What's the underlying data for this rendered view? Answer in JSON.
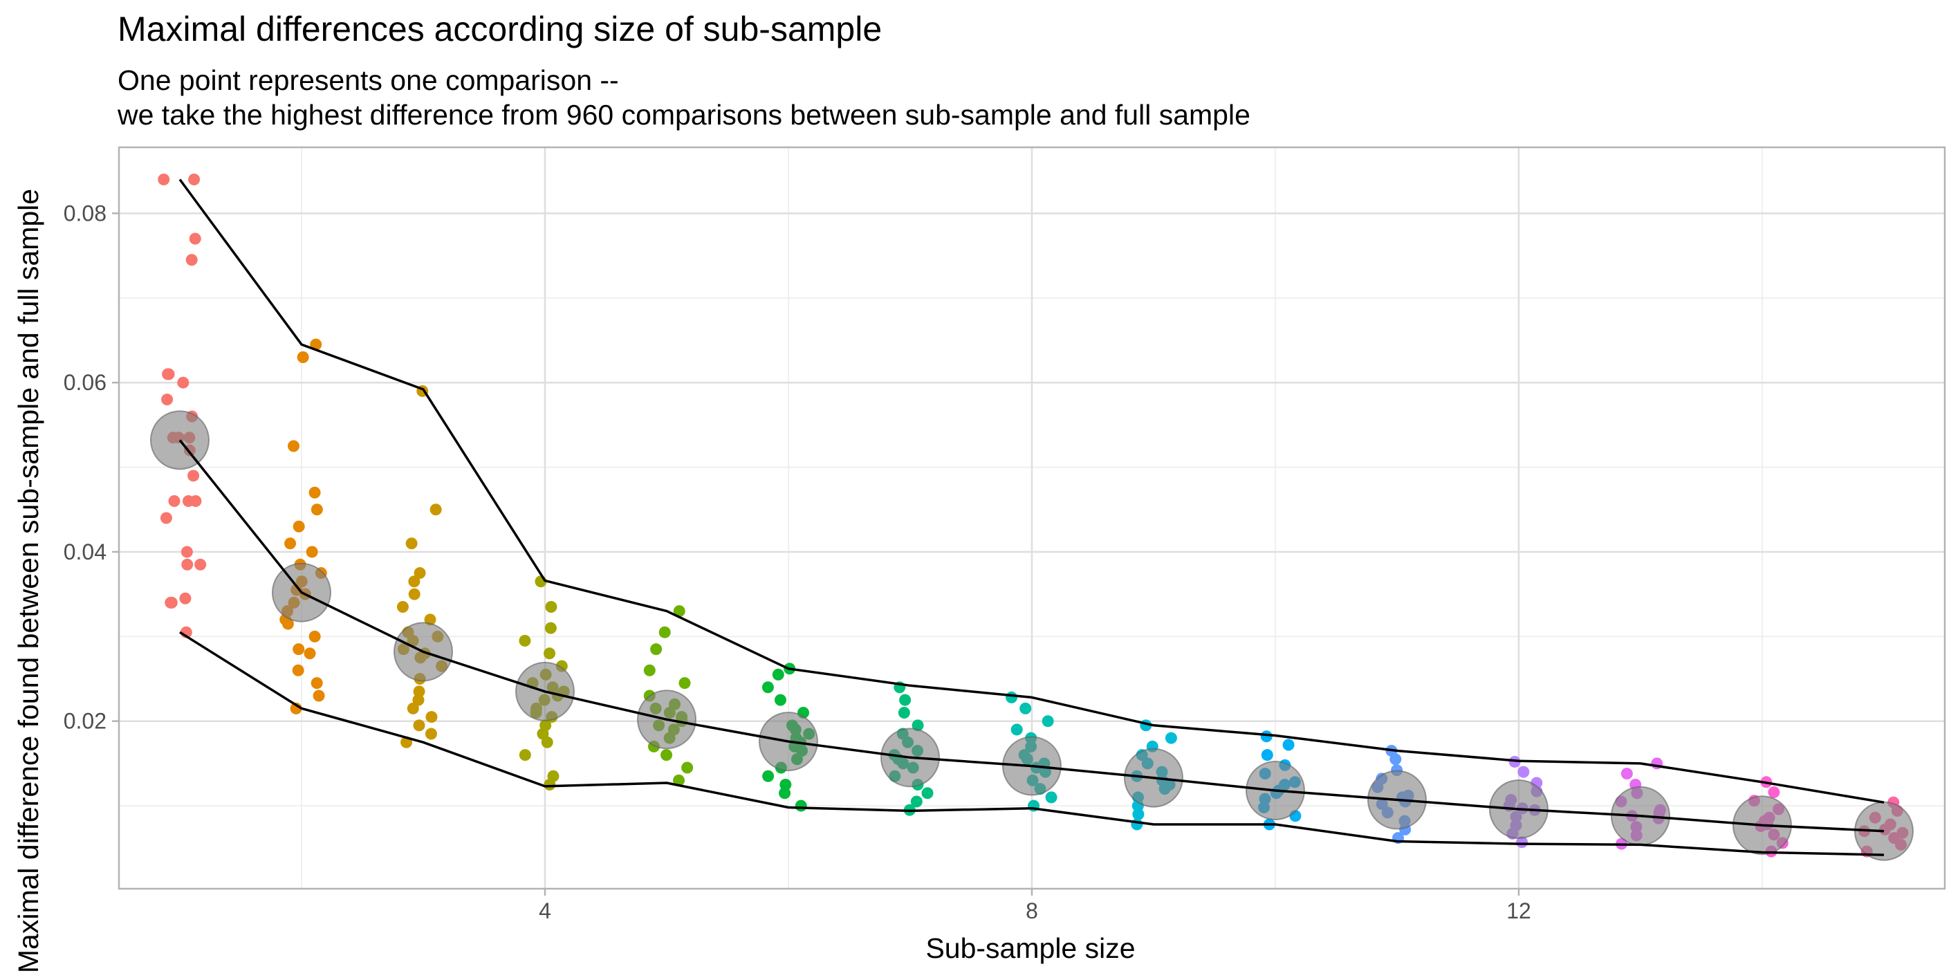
{
  "chart_data": {
    "type": "scatter",
    "title": "Maximal differences according size of sub-sample",
    "subtitle_lines": [
      "One point represents one comparison --",
      "we take the highest difference from 960 comparisons between sub-sample and full sample"
    ],
    "xlabel": "Sub-sample size",
    "ylabel": "Maximal difference found between sub-sample and full sample",
    "xlim": [
      0.5,
      15.5
    ],
    "ylim": [
      0.0002,
      0.0878
    ],
    "x_ticks": [
      4,
      8,
      12
    ],
    "x_tick_labels": [
      "4",
      "8",
      "12"
    ],
    "y_ticks": [
      0.02,
      0.04,
      0.06,
      0.08
    ],
    "y_tick_labels": [
      "0.02",
      "0.04",
      "0.06",
      "0.08"
    ],
    "grid": true,
    "legend": "none",
    "colors": [
      "#F8766D",
      "#E38900",
      "#C49A00",
      "#99A800",
      "#53B400",
      "#00BC56",
      "#00C094",
      "#00BFC4",
      "#00B6EB",
      "#06A4FF",
      "#A58AFF",
      "#DF70F8",
      "#FB61D7",
      "#FF66A8"
    ],
    "point_colors_by_size": [
      "#F8766D",
      "#E58700",
      "#C99800",
      "#A3A500",
      "#6BB100",
      "#00BA38",
      "#00BF7D",
      "#00C0AF",
      "#00BCD8",
      "#00B0F6",
      "#619CFF",
      "#B983FF",
      "#E76BF3",
      "#FD61D1",
      "#FF67A4"
    ],
    "mean_marker_color": "#808080",
    "line_color": "#000000",
    "series": [
      {
        "x": [
          1,
          2,
          3,
          4,
          5,
          6,
          7,
          8,
          9,
          10,
          11,
          12,
          13,
          14,
          15
        ],
        "points": [
          [
            0.0305,
            0.034,
            0.0345,
            0.0385,
            0.0385,
            0.04,
            0.044,
            0.046,
            0.046,
            0.049,
            0.052,
            0.0535,
            0.056,
            0.058,
            0.06,
            0.061,
            0.061,
            0.0745,
            0.077,
            0.084,
            0.084,
            0.0535,
            0.0535,
            0.046,
            0.034
          ],
          [
            0.0215,
            0.023,
            0.0245,
            0.026,
            0.0285,
            0.03,
            0.0315,
            0.033,
            0.034,
            0.0355,
            0.0365,
            0.0375,
            0.0385,
            0.04,
            0.041,
            0.043,
            0.045,
            0.047,
            0.0525,
            0.063,
            0.0645,
            0.028,
            0.032,
            0.035
          ],
          [
            0.0175,
            0.0185,
            0.0195,
            0.0205,
            0.0215,
            0.0225,
            0.0235,
            0.025,
            0.0265,
            0.0275,
            0.0285,
            0.0295,
            0.0305,
            0.032,
            0.0335,
            0.035,
            0.0365,
            0.0375,
            0.041,
            0.045,
            0.059,
            0.028,
            0.03
          ],
          [
            0.0125,
            0.0135,
            0.016,
            0.0175,
            0.0185,
            0.0195,
            0.0205,
            0.0215,
            0.0225,
            0.0235,
            0.0245,
            0.0255,
            0.0265,
            0.028,
            0.0295,
            0.031,
            0.0335,
            0.0365,
            0.023,
            0.024,
            0.021
          ],
          [
            0.013,
            0.0145,
            0.016,
            0.017,
            0.018,
            0.019,
            0.02,
            0.021,
            0.022,
            0.023,
            0.0245,
            0.026,
            0.0285,
            0.0305,
            0.033,
            0.0195,
            0.0205,
            0.0215
          ],
          [
            0.01,
            0.0115,
            0.0125,
            0.0135,
            0.0145,
            0.0155,
            0.0165,
            0.0175,
            0.0185,
            0.0195,
            0.021,
            0.0225,
            0.024,
            0.0255,
            0.0262,
            0.017,
            0.018,
            0.019
          ],
          [
            0.0095,
            0.0105,
            0.0115,
            0.0125,
            0.0135,
            0.0145,
            0.0155,
            0.0165,
            0.0175,
            0.0185,
            0.0195,
            0.021,
            0.0225,
            0.024,
            0.015,
            0.016
          ],
          [
            0.01,
            0.011,
            0.012,
            0.013,
            0.014,
            0.015,
            0.016,
            0.017,
            0.018,
            0.019,
            0.02,
            0.0215,
            0.0228,
            0.0145,
            0.0155
          ],
          [
            0.0078,
            0.009,
            0.01,
            0.011,
            0.012,
            0.013,
            0.014,
            0.015,
            0.016,
            0.017,
            0.018,
            0.0195,
            0.0135,
            0.0125
          ],
          [
            0.0078,
            0.0088,
            0.0098,
            0.0108,
            0.0118,
            0.0128,
            0.0138,
            0.0148,
            0.016,
            0.0172,
            0.0182,
            0.0115,
            0.0125
          ],
          [
            0.0062,
            0.0072,
            0.0082,
            0.0092,
            0.0102,
            0.0112,
            0.0122,
            0.0132,
            0.0142,
            0.0155,
            0.0165,
            0.0105,
            0.011
          ],
          [
            0.0057,
            0.0067,
            0.0077,
            0.0087,
            0.0097,
            0.0107,
            0.0117,
            0.0127,
            0.014,
            0.0152,
            0.0095,
            0.01
          ],
          [
            0.0055,
            0.0065,
            0.0075,
            0.0085,
            0.0095,
            0.0105,
            0.0115,
            0.0125,
            0.0138,
            0.015,
            0.0088,
            0.0092
          ],
          [
            0.0046,
            0.0056,
            0.0066,
            0.0076,
            0.0086,
            0.0096,
            0.0106,
            0.0116,
            0.0128,
            0.0078,
            0.0082
          ],
          [
            0.0046,
            0.0054,
            0.0062,
            0.007,
            0.0078,
            0.0086,
            0.0094,
            0.0104,
            0.0068,
            0.0072
          ]
        ],
        "mean": [
          0.0532,
          0.0352,
          0.0282,
          0.0235,
          0.0202,
          0.0176,
          0.0157,
          0.0147,
          0.0133,
          0.0118,
          0.0107,
          0.0096,
          0.0088,
          0.0077,
          0.007
        ],
        "max": [
          0.084,
          0.0645,
          0.0592,
          0.0366,
          0.033,
          0.0262,
          0.0242,
          0.0228,
          0.0195,
          0.0183,
          0.0165,
          0.0153,
          0.015,
          0.0128,
          0.0104
        ],
        "min": [
          0.0305,
          0.0215,
          0.0175,
          0.0123,
          0.0127,
          0.0098,
          0.0094,
          0.0097,
          0.0078,
          0.0078,
          0.0058,
          0.0055,
          0.0054,
          0.0045,
          0.0042
        ]
      }
    ]
  }
}
